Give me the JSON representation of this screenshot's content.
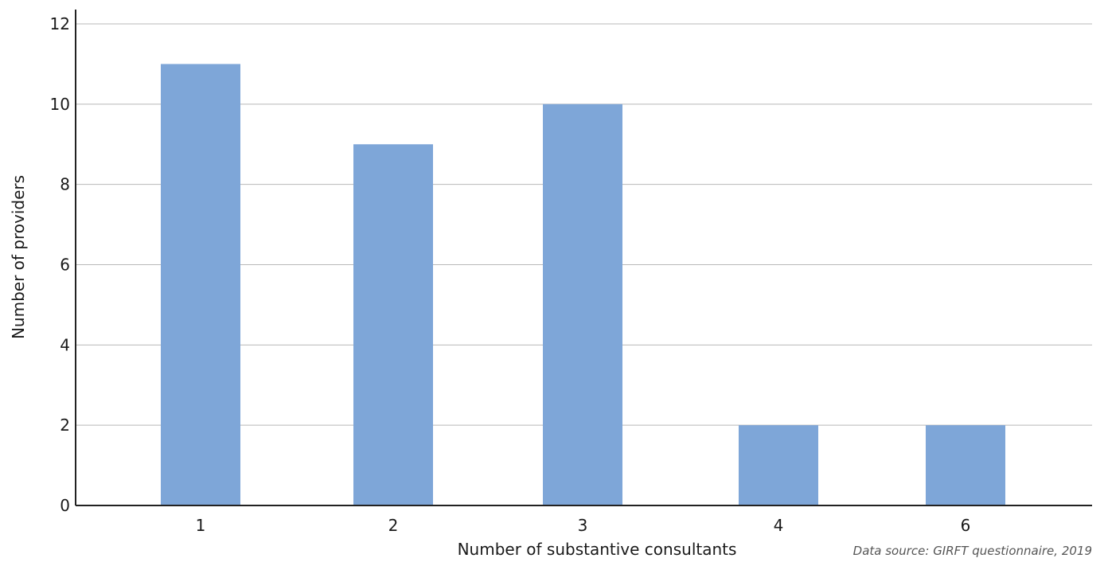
{
  "chart_data": {
    "type": "bar",
    "categories": [
      "1",
      "2",
      "3",
      "4",
      "6"
    ],
    "values": [
      11,
      9,
      10,
      2,
      2
    ],
    "title": "",
    "xlabel": "Number of substantive consultants",
    "ylabel": "Number of providers",
    "ylim": [
      0,
      12
    ],
    "yticks": [
      0,
      2,
      4,
      6,
      8,
      10,
      12
    ],
    "grid": true,
    "legend": "none"
  },
  "source_note": "Data source: GIRFT questionnaire, 2019",
  "colors": {
    "bar": "#7ea6d8",
    "grid": "#b8b8b8",
    "axis": "#222222"
  }
}
